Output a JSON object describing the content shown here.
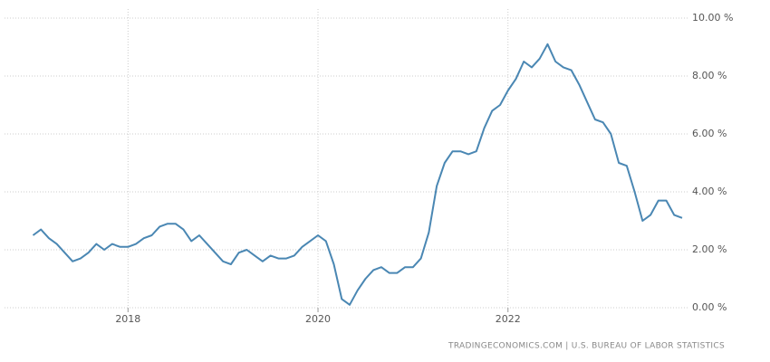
{
  "chart_data": {
    "type": "line",
    "source": "TRADINGECONOMICS.COM | U.S. BUREAU OF LABOR STATISTICS",
    "x": [
      2017,
      2017.0833,
      2017.1667,
      2017.25,
      2017.3333,
      2017.4167,
      2017.5,
      2017.5833,
      2017.6667,
      2017.75,
      2017.8333,
      2017.9167,
      2018,
      2018.0833,
      2018.1667,
      2018.25,
      2018.3333,
      2018.4167,
      2018.5,
      2018.5833,
      2018.6667,
      2018.75,
      2018.8333,
      2018.9167,
      2019,
      2019.0833,
      2019.1667,
      2019.25,
      2019.3333,
      2019.4167,
      2019.5,
      2019.5833,
      2019.6667,
      2019.75,
      2019.8333,
      2019.9167,
      2020,
      2020.0833,
      2020.1667,
      2020.25,
      2020.3333,
      2020.4167,
      2020.5,
      2020.5833,
      2020.6667,
      2020.75,
      2020.8333,
      2020.9167,
      2021,
      2021.0833,
      2021.1667,
      2021.25,
      2021.3333,
      2021.4167,
      2021.5,
      2021.5833,
      2021.6667,
      2021.75,
      2021.8333,
      2021.9167,
      2022,
      2022.0833,
      2022.1667,
      2022.25,
      2022.3333,
      2022.4167,
      2022.5,
      2022.5833,
      2022.6667,
      2022.75,
      2022.8333,
      2022.9167,
      2023,
      2023.0833,
      2023.1667,
      2023.25,
      2023.3333,
      2023.4167,
      2023.5,
      2023.5833,
      2023.6667,
      2023.75,
      2023.8333
    ],
    "series": [
      {
        "color": "#4a87b3",
        "values": [
          2.5,
          2.7,
          2.4,
          2.2,
          1.9,
          1.6,
          1.7,
          1.9,
          2.2,
          2.0,
          2.2,
          2.1,
          2.1,
          2.2,
          2.4,
          2.5,
          2.8,
          2.9,
          2.9,
          2.7,
          2.3,
          2.5,
          2.2,
          1.9,
          1.6,
          1.5,
          1.9,
          2.0,
          1.8,
          1.6,
          1.8,
          1.7,
          1.7,
          1.8,
          2.1,
          2.3,
          2.5,
          2.3,
          1.5,
          0.3,
          0.1,
          0.6,
          1.0,
          1.3,
          1.4,
          1.2,
          1.2,
          1.4,
          1.4,
          1.7,
          2.6,
          4.2,
          5.0,
          5.4,
          5.4,
          5.3,
          5.4,
          6.2,
          6.8,
          7.0,
          7.5,
          7.9,
          8.5,
          8.3,
          8.6,
          9.1,
          8.5,
          8.3,
          8.2,
          7.7,
          7.1,
          6.5,
          6.4,
          6.0,
          5.0,
          4.9,
          4.0,
          3.0,
          3.2,
          3.7,
          3.7,
          3.2,
          3.1
        ]
      }
    ],
    "xlim": [
      2016.7,
      2023.9
    ],
    "xticks": [
      2018,
      2020,
      2022
    ],
    "ylim": [
      0,
      10
    ],
    "yticks": [
      {
        "value": 0,
        "label": "0.00 %"
      },
      {
        "value": 2,
        "label": "2.00 %"
      },
      {
        "value": 4,
        "label": "4.00 %"
      },
      {
        "value": 6,
        "label": "6.00 %"
      },
      {
        "value": 8,
        "label": "8.00 %"
      },
      {
        "value": 10,
        "label": "10.00 %"
      }
    ],
    "grid": true
  }
}
